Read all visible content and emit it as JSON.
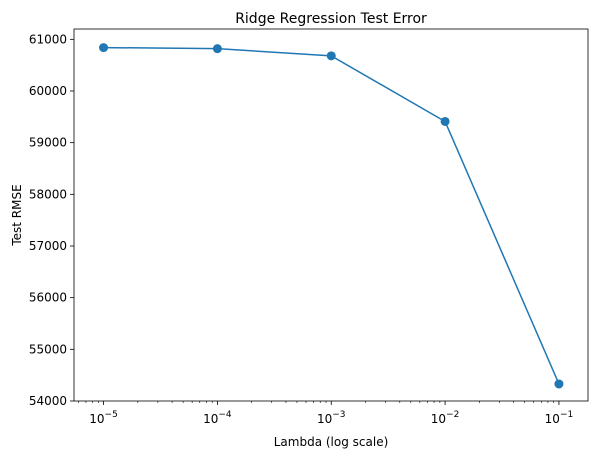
{
  "chart_data": {
    "type": "line",
    "title": "Ridge Regression Test Error",
    "xlabel": "Lambda (log scale)",
    "ylabel": "Test RMSE",
    "x_scale": "log",
    "x_tick_values": [
      1e-05,
      0.0001,
      0.001,
      0.01,
      0.1
    ],
    "x_tick_labels": [
      {
        "base": "10",
        "exp": "−5"
      },
      {
        "base": "10",
        "exp": "−4"
      },
      {
        "base": "10",
        "exp": "−3"
      },
      {
        "base": "10",
        "exp": "−2"
      },
      {
        "base": "10",
        "exp": "−1"
      }
    ],
    "y_ticks": [
      54000,
      55000,
      56000,
      57000,
      58000,
      59000,
      60000,
      61000
    ],
    "y_tick_labels": [
      "54000",
      "55000",
      "56000",
      "57000",
      "58000",
      "59000",
      "60000",
      "61000"
    ],
    "ylim": [
      54000,
      61200
    ],
    "xlim": [
      5.5e-06,
      0.18
    ],
    "grid": false,
    "series": [
      {
        "x": [
          1e-05,
          0.0001,
          0.001,
          0.01,
          0.1
        ],
        "values": [
          60840,
          60820,
          60680,
          59410,
          54330
        ],
        "color": "#1f77b4",
        "marker": "circle"
      }
    ]
  }
}
